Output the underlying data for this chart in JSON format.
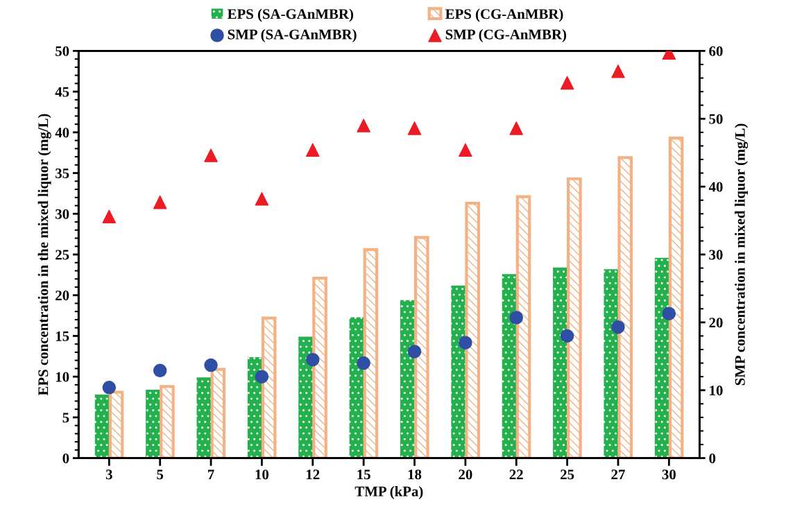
{
  "chart_data": {
    "type": "bar",
    "xlabel": "TMP (kPa)",
    "ylabel": "EPS concentration in the mixed liquor (mg/L)",
    "y2label": "SMP concentration in mixed liquor (mg/L)",
    "categories": [
      "3",
      "5",
      "7",
      "10",
      "12",
      "15",
      "18",
      "20",
      "22",
      "25",
      "27",
      "30"
    ],
    "series": [
      {
        "name": "EPS (SA-GAnMBR)",
        "color": "#22b14c",
        "values": [
          7.8,
          8.4,
          9.9,
          12.4,
          14.9,
          17.3,
          19.4,
          21.2,
          22.6,
          23.4,
          23.2,
          24.6
        ]
      },
      {
        "name": "EPS (CG-AnMBR)",
        "color": "#f4b183",
        "values": [
          8.1,
          8.8,
          10.9,
          17.2,
          22.1,
          25.6,
          27.1,
          31.3,
          32.1,
          34.3,
          36.9,
          39.3
        ]
      },
      {
        "name": "SMP (SA-GAnMBR)",
        "type": "scatter",
        "axis": "y2",
        "marker": "circle",
        "color": "#2e4fa3",
        "values": [
          10.4,
          12.9,
          13.7,
          12.0,
          14.5,
          14.0,
          15.7,
          17.0,
          20.7,
          18.0,
          19.3,
          21.3
        ]
      },
      {
        "name": "SMP (CG-AnMBR)",
        "type": "scatter",
        "axis": "y2",
        "marker": "triangle",
        "color": "#ec1c24",
        "values": [
          35.6,
          37.7,
          44.6,
          38.2,
          45.4,
          49.0,
          48.6,
          45.4,
          48.6,
          55.3,
          57.0,
          59.7
        ]
      }
    ],
    "ylim": [
      0,
      50
    ],
    "yticks": [
      0,
      5,
      10,
      15,
      20,
      25,
      30,
      35,
      40,
      45,
      50
    ],
    "y2lim": [
      0,
      60
    ],
    "y2ticks": [
      0,
      10,
      20,
      30,
      40,
      50,
      60
    ],
    "grid": false,
    "legend": "top"
  }
}
